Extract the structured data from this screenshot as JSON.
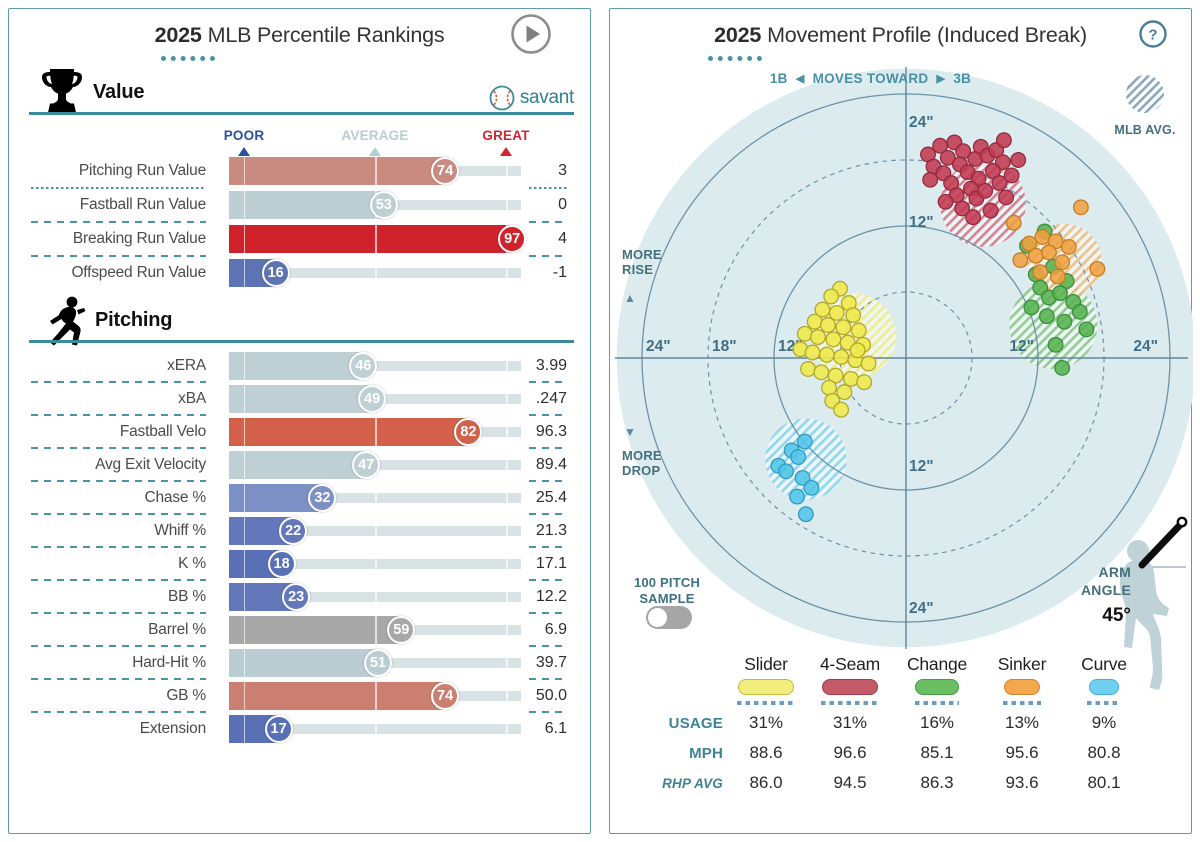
{
  "accent": {
    "teal": "#3c8b9d",
    "dash": "#4b94a4",
    "poor": "#2b51a3",
    "average": "#b6cdd4",
    "great": "#cf2630",
    "ring": "#6d92a8",
    "axis": "#5d87a0",
    "plot_bg": "#dcebee",
    "label_blue": "#3f6e86"
  },
  "percentile_panel": {
    "title_year": "2025",
    "title_text": "MLB Percentile Rankings",
    "brand": "savant",
    "scale": {
      "poor": "POOR",
      "average": "AVERAGE",
      "great": "GREAT"
    },
    "section_value_label": "Value",
    "section_pitching_label": "Pitching"
  },
  "movement_panel": {
    "title_year": "2025",
    "title_text": "Movement Profile (Induced Break)",
    "toward_left": "1B",
    "toward_mid": "MOVES TOWARD",
    "toward_right": "3B",
    "mlb_avg_label": "MLB AVG.",
    "more_rise": [
      "MORE",
      "RISE"
    ],
    "more_drop": [
      "MORE",
      "DROP"
    ],
    "sample_label": [
      "100 PITCH",
      "SAMPLE"
    ],
    "arm_angle_label": [
      "ARM",
      "ANGLE"
    ],
    "arm_angle_value": "45°",
    "row_labels": {
      "usage": "USAGE",
      "mph": "MPH",
      "rhp_avg": "RHP AVG"
    }
  },
  "chart_data": [
    {
      "type": "bar",
      "title": "2025 MLB Percentile Rankings",
      "xlim": [
        0,
        100
      ],
      "markers": {
        "POOR": 5,
        "AVERAGE": 50,
        "GREAT": 95
      },
      "sections": [
        {
          "name": "Value",
          "rows": [
            {
              "label": "Pitching Run Value",
              "percentile": 74,
              "value": "3",
              "color": "#c98b80",
              "sep": "dots"
            },
            {
              "label": "Fastball Run Value",
              "percentile": 53,
              "value": "0",
              "color": "#bccfd3",
              "sep": "dash"
            },
            {
              "label": "Breaking Run Value",
              "percentile": 97,
              "value": "4",
              "color": "#d0222b",
              "sep": "dash"
            },
            {
              "label": "Offspeed Run Value",
              "percentile": 16,
              "value": "-1",
              "color": "#5d74b4",
              "sep": null
            }
          ]
        },
        {
          "name": "Pitching",
          "rows": [
            {
              "label": "xERA",
              "percentile": 46,
              "value": "3.99",
              "color": "#bfd0d4",
              "sep": "dash"
            },
            {
              "label": "xBA",
              "percentile": 49,
              "value": ".247",
              "color": "#bfd0d4",
              "sep": "dash"
            },
            {
              "label": "Fastball Velo",
              "percentile": 82,
              "value": "96.3",
              "color": "#d2604b",
              "sep": "dash"
            },
            {
              "label": "Avg Exit Velocity",
              "percentile": 47,
              "value": "89.4",
              "color": "#bfd0d4",
              "sep": "dash"
            },
            {
              "label": "Chase %",
              "percentile": 32,
              "value": "25.4",
              "color": "#7d90c5",
              "sep": "dash"
            },
            {
              "label": "Whiff %",
              "percentile": 22,
              "value": "21.3",
              "color": "#6377bb",
              "sep": "dash"
            },
            {
              "label": "K %",
              "percentile": 18,
              "value": "17.1",
              "color": "#5a70b6",
              "sep": "dash"
            },
            {
              "label": "BB %",
              "percentile": 23,
              "value": "12.2",
              "color": "#6377bb",
              "sep": "dash"
            },
            {
              "label": "Barrel %",
              "percentile": 59,
              "value": "6.9",
              "color": "#a8a8a8",
              "sep": "dash"
            },
            {
              "label": "Hard-Hit %",
              "percentile": 51,
              "value": "39.7",
              "color": "#b9cdd2",
              "sep": "dash"
            },
            {
              "label": "GB %",
              "percentile": 74,
              "value": "50.0",
              "color": "#cb7f70",
              "sep": "dash"
            },
            {
              "label": "Extension",
              "percentile": 17,
              "value": "6.1",
              "color": "#5a70b6",
              "sep": null
            }
          ]
        }
      ]
    },
    {
      "type": "scatter",
      "title": "2025 Movement Profile (Induced Break)",
      "xlabel": "1B ◀ MOVES TOWARD ▶ 3B",
      "units": "inches",
      "rings": {
        "solid": [
          12,
          24
        ],
        "dashed": [
          6,
          18
        ],
        "bg_radius": 26.3
      },
      "axis_tick_labels": [
        "24\"",
        "18\"",
        "12\"",
        "12\"",
        "24\""
      ],
      "arm_angle_deg": 45,
      "sample_size": 100,
      "series": [
        {
          "name": "Slider",
          "usage": "31%",
          "mph": "88.6",
          "rhp_avg": "86.0",
          "color": "#f0e94a",
          "stroke": "#b0a72c",
          "pill": "#f2ee7d",
          "pill_stroke": "#c2b945",
          "pill_w": 56,
          "dots_w": 58,
          "mlb_avg": {
            "x": -4.8,
            "y": 2.0,
            "r": 3.9
          },
          "points": [
            [
              -6.0,
              6.3
            ],
            [
              -6.8,
              5.6
            ],
            [
              -5.2,
              5.0
            ],
            [
              -7.6,
              4.4
            ],
            [
              -6.3,
              4.1
            ],
            [
              -4.8,
              3.9
            ],
            [
              -8.3,
              3.3
            ],
            [
              -7.1,
              3.0
            ],
            [
              -5.7,
              2.8
            ],
            [
              -4.3,
              2.5
            ],
            [
              -9.2,
              2.2
            ],
            [
              -8.0,
              1.9
            ],
            [
              -6.6,
              1.7
            ],
            [
              -5.3,
              1.4
            ],
            [
              -3.9,
              1.2
            ],
            [
              -9.6,
              0.8
            ],
            [
              -8.5,
              0.5
            ],
            [
              -7.2,
              0.3
            ],
            [
              -5.9,
              0.1
            ],
            [
              -4.6,
              -0.2
            ],
            [
              -3.4,
              -0.5
            ],
            [
              -8.9,
              -1.0
            ],
            [
              -7.7,
              -1.3
            ],
            [
              -6.4,
              -1.6
            ],
            [
              -5.0,
              -1.9
            ],
            [
              -3.8,
              -2.2
            ],
            [
              -7.0,
              -2.7
            ],
            [
              -5.6,
              -3.1
            ],
            [
              -6.7,
              -3.9
            ],
            [
              -5.9,
              -4.7
            ],
            [
              -4.4,
              0.7
            ]
          ]
        },
        {
          "name": "4-Seam",
          "usage": "31%",
          "mph": "96.6",
          "rhp_avg": "94.5",
          "color": "#c23a52",
          "stroke": "#93293d",
          "pill": "#c55a69",
          "pill_stroke": "#a03a4c",
          "pill_w": 56,
          "dots_w": 58,
          "mlb_avg": {
            "x": 7.0,
            "y": 14.0,
            "r": 3.9
          },
          "points": [
            [
              2.0,
              18.5
            ],
            [
              3.1,
              19.3
            ],
            [
              2.5,
              17.4
            ],
            [
              3.8,
              18.2
            ],
            [
              4.4,
              19.6
            ],
            [
              5.2,
              18.8
            ],
            [
              4.9,
              17.6
            ],
            [
              3.4,
              16.8
            ],
            [
              2.2,
              16.2
            ],
            [
              4.1,
              15.9
            ],
            [
              5.6,
              16.9
            ],
            [
              6.3,
              18.1
            ],
            [
              6.8,
              19.2
            ],
            [
              7.4,
              18.4
            ],
            [
              8.2,
              18.9
            ],
            [
              8.8,
              17.8
            ],
            [
              7.9,
              17.0
            ],
            [
              6.6,
              16.3
            ],
            [
              5.9,
              15.4
            ],
            [
              4.6,
              14.8
            ],
            [
              3.6,
              14.2
            ],
            [
              5.1,
              13.6
            ],
            [
              6.4,
              14.5
            ],
            [
              7.2,
              15.2
            ],
            [
              8.5,
              15.9
            ],
            [
              9.6,
              16.6
            ],
            [
              10.2,
              18.0
            ],
            [
              9.1,
              14.6
            ],
            [
              7.7,
              13.4
            ],
            [
              6.1,
              12.8
            ],
            [
              8.9,
              19.8
            ]
          ]
        },
        {
          "name": "Change",
          "usage": "16%",
          "mph": "85.1",
          "rhp_avg": "86.3",
          "color": "#56b350",
          "stroke": "#3a8f3c",
          "pill": "#6abf63",
          "pill_stroke": "#48984a",
          "pill_w": 44,
          "dots_w": 44,
          "mlb_avg": {
            "x": 13.4,
            "y": 3.0,
            "r": 4.0
          },
          "points": [
            [
              12.6,
              11.5
            ],
            [
              11.0,
              10.2
            ],
            [
              13.4,
              8.3
            ],
            [
              11.8,
              7.6
            ],
            [
              14.6,
              7.0
            ],
            [
              12.2,
              6.4
            ],
            [
              13.0,
              5.5
            ],
            [
              14.0,
              5.9
            ],
            [
              15.2,
              5.1
            ],
            [
              11.4,
              4.6
            ],
            [
              12.8,
              3.8
            ],
            [
              14.4,
              3.3
            ],
            [
              15.8,
              4.2
            ],
            [
              16.4,
              2.6
            ],
            [
              13.6,
              1.2
            ],
            [
              14.2,
              -0.9
            ]
          ]
        },
        {
          "name": "Sinker",
          "usage": "13%",
          "mph": "95.6",
          "rhp_avg": "93.6",
          "color": "#f0a041",
          "stroke": "#c57d22",
          "pill": "#f3a84f",
          "pill_stroke": "#cf8630",
          "pill_w": 36,
          "dots_w": 38,
          "mlb_avg": {
            "x": 14.4,
            "y": 8.8,
            "r": 3.4
          },
          "points": [
            [
              9.8,
              12.3
            ],
            [
              15.9,
              13.7
            ],
            [
              11.2,
              10.4
            ],
            [
              12.4,
              11.0
            ],
            [
              13.6,
              10.6
            ],
            [
              14.8,
              10.1
            ],
            [
              10.4,
              8.9
            ],
            [
              11.8,
              9.3
            ],
            [
              13.0,
              9.6
            ],
            [
              14.2,
              8.7
            ],
            [
              17.4,
              8.1
            ],
            [
              12.2,
              7.8
            ],
            [
              13.8,
              7.4
            ]
          ]
        },
        {
          "name": "Curve",
          "usage": "9%",
          "mph": "80.8",
          "rhp_avg": "80.1",
          "color": "#52c5e9",
          "stroke": "#2f9cc0",
          "pill": "#6fd0f0",
          "pill_stroke": "#45aed4",
          "pill_w": 30,
          "dots_w": 34,
          "mlb_avg": {
            "x": -9.1,
            "y": -9.2,
            "r": 3.7
          },
          "points": [
            [
              -9.2,
              -7.6
            ],
            [
              -10.4,
              -8.4
            ],
            [
              -9.8,
              -9.0
            ],
            [
              -11.6,
              -9.8
            ],
            [
              -10.9,
              -10.3
            ],
            [
              -9.4,
              -10.9
            ],
            [
              -8.6,
              -11.8
            ],
            [
              -9.9,
              -12.6
            ],
            [
              -9.1,
              -14.2
            ]
          ]
        }
      ]
    }
  ]
}
